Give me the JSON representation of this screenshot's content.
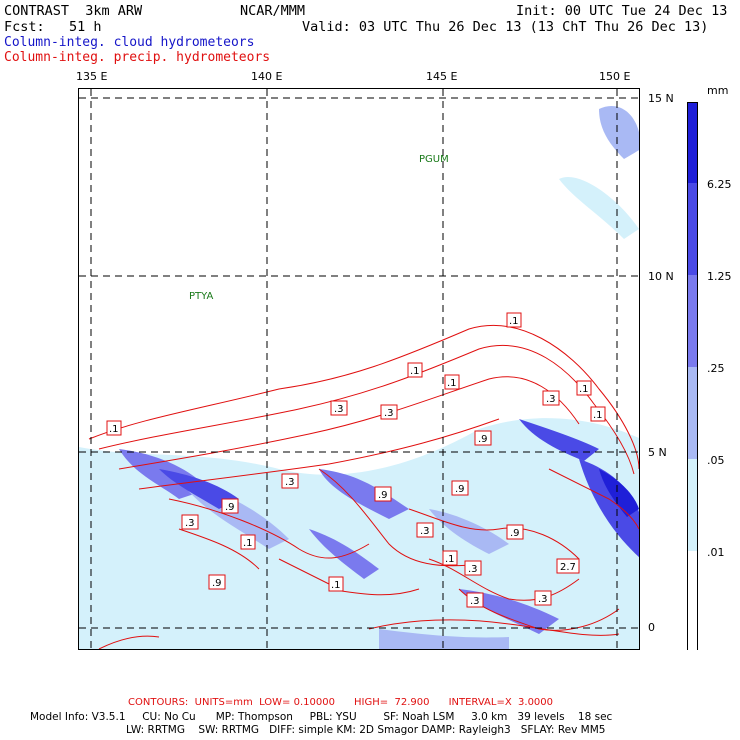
{
  "header": {
    "line1_left": "CONTRAST  3km ARW",
    "line1_mid": "NCAR/MMM",
    "line1_right": "Init: 00 UTC Tue 24 Dec 13",
    "line2_left": "Fcst:   51 h",
    "line2_right": "Valid: 03 UTC Thu 26 Dec 13 (13 ChT Thu 26 Dec 13)",
    "field1": "Column-integ. cloud hydrometeors",
    "field2": "Column-integ. precip. hydrometeors"
  },
  "map": {
    "lon_labels": [
      "135 E",
      "140 E",
      "145 E",
      "150 E"
    ],
    "lat_labels": [
      "15 N",
      "10 N",
      "5 N",
      "0"
    ],
    "place_labels": [
      "PGUM",
      "PTYA"
    ],
    "contour_labels": [
      ".1",
      ".1",
      ".1",
      ".1",
      ".1",
      ".1",
      ".3",
      ".3",
      ".3",
      ".3",
      ".3",
      ".9",
      ".9",
      ".9",
      ".9",
      ".3",
      ".1",
      ".3",
      ".1",
      "2.7",
      ".1",
      ".3",
      ".3",
      ".9",
      ".9"
    ]
  },
  "colorbar": {
    "unit": "mm",
    "labels": [
      "6.25",
      "1.25",
      ".25",
      ".05",
      ".01"
    ],
    "colors": [
      "#1f1fd8",
      "#4a4ae6",
      "#7a7aee",
      "#a9b9f4",
      "#d4f1fb",
      "#ffffff"
    ]
  },
  "footer": {
    "contours": "CONTOURS:  UNITS=mm  LOW= 0.10000      HIGH=  72.900      INTERVAL=X  3.0000",
    "model1": "Model Info: V3.5.1     CU: No Cu      MP: Thompson     PBL: YSU        SF: Noah LSM     3.0 km   39 levels    18 sec",
    "model2": "LW: RRTMG    SW: RRTMG   DIFF: simple KM: 2D Smagor DAMP: Rayleigh3   SFLAY: Rev MM5"
  }
}
